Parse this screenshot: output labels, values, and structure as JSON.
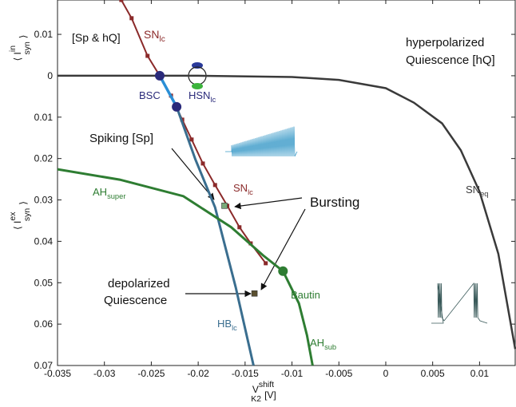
{
  "chart_data": {
    "type": "line",
    "x_label": {
      "pre": "V",
      "sup": "shift",
      "sub": "K2",
      "post": "[V]"
    },
    "y_label_lower": {
      "pre": "⟨ I",
      "sup": "ex",
      "sub": "syn",
      "post": "⟩"
    },
    "y_label_upper": {
      "pre": "⟨ I",
      "sup": "in",
      "sub": "syn",
      "post": "⟩"
    },
    "xlim": [
      -0.035,
      0.0138
    ],
    "ylim": [
      -0.0183,
      0.07
    ],
    "y_inverted": true,
    "xticks": [
      -0.035,
      -0.03,
      -0.025,
      -0.02,
      -0.015,
      -0.01,
      -0.005,
      0,
      0.005,
      0.01
    ],
    "yticks": [
      {
        "value": -0.01,
        "label": "0.01"
      },
      0,
      0.01,
      0.02,
      0.03,
      0.04,
      0.05,
      0.06,
      0.07
    ],
    "series": [
      {
        "color": "#3a3a3a",
        "width": 2.5,
        "x": [
          -0.035,
          -0.02,
          -0.01,
          -0.005,
          0,
          0.003,
          0.006,
          0.008,
          0.01,
          0.012,
          0.0138
        ],
        "values": [
          0,
          0,
          0.0003,
          0.001,
          0.003,
          0.0065,
          0.0115,
          0.018,
          0.028,
          0.043,
          0.066
        ]
      },
      {
        "color": "#8b2a2a",
        "width": 2,
        "marker": "square",
        "x": [
          -0.0282,
          -0.0271,
          -0.0254,
          -0.0241,
          -0.0229,
          -0.0217,
          -0.0207,
          -0.0195,
          -0.0182,
          -0.0169,
          -0.0156,
          -0.0144,
          -0.0128
        ],
        "values": [
          -0.0183,
          -0.0139,
          -0.0048,
          0,
          0.0048,
          0.0106,
          0.0154,
          0.0212,
          0.0264,
          0.0314,
          0.0366,
          0.0405,
          0.0453
        ]
      },
      {
        "color": "#3a6e8f",
        "width": 3,
        "x": [
          -0.0223,
          -0.0203,
          -0.0182,
          -0.016,
          -0.0141
        ],
        "values": [
          0.0075,
          0.0202,
          0.0318,
          0.0511,
          0.07
        ]
      },
      {
        "color": "#2a8fd6",
        "width": 3.5,
        "x": [
          -0.0241,
          -0.0223
        ],
        "values": [
          0,
          0.0075
        ]
      },
      {
        "color": "#2e7d32",
        "width": 3,
        "x": [
          -0.035,
          -0.02837,
          -0.02158,
          -0.01648,
          -0.01308,
          -0.01096,
          -0.00926,
          -0.0084,
          -0.0078
        ],
        "values": [
          0.0226,
          0.0251,
          0.0291,
          0.0366,
          0.0434,
          0.0472,
          0.055,
          0.0627,
          0.07
        ]
      }
    ],
    "points": [
      {
        "x": -0.0241,
        "y": 0,
        "color": "#2a2a7a",
        "shape": "circle"
      },
      {
        "x": -0.0223,
        "y": 0.0075,
        "color": "#2a2a7a",
        "shape": "circle"
      },
      {
        "x": -0.01096,
        "y": 0.0472,
        "color": "#2e7d32",
        "shape": "circle"
      },
      {
        "x": -0.0172,
        "y": 0.0314,
        "color": "#7aaa7a",
        "shape": "square"
      },
      {
        "x": -0.014,
        "y": 0.0526,
        "color": "#5a5030",
        "shape": "square"
      }
    ],
    "annotations": [
      {
        "text": "[Sp & hQ]",
        "color": "#111111"
      },
      {
        "text": "hyperpolarized",
        "color": "#111111"
      },
      {
        "text": "Quiescence [hQ]",
        "color": "#111111"
      },
      {
        "text": "SN",
        "sub": "lc",
        "color": "#8b2a2a"
      },
      {
        "text": "BSC",
        "color": "#2a2a7a"
      },
      {
        "text": "HSN",
        "sub": "lc",
        "color": "#2a2a7a"
      },
      {
        "text": "Spiking [Sp]",
        "color": "#111111"
      },
      {
        "text": "SN",
        "sub": "lc",
        "color": "#8b2a2a"
      },
      {
        "text": "AH",
        "sub": "super",
        "color": "#2e7d32"
      },
      {
        "text": "Bursting",
        "color": "#111111"
      },
      {
        "text": "depolarized",
        "color": "#111111"
      },
      {
        "text": "Quiescence",
        "color": "#111111"
      },
      {
        "text": "Bautin",
        "color": "#2e7d32"
      },
      {
        "text": "HB",
        "sub": "lc",
        "color": "#3a6e8f"
      },
      {
        "text": "AH",
        "sub": "sub",
        "color": "#2e7d32"
      },
      {
        "text": "SN",
        "sub": "eq",
        "color": "#3a3a3a"
      }
    ]
  }
}
